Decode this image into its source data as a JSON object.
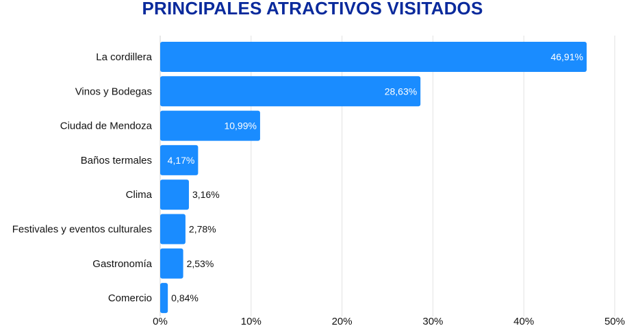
{
  "colors": {
    "bar": "#1a8cff",
    "title": "#0a2a9c",
    "grid": "#e2e2e2",
    "text": "#111111",
    "label_inside": "#ffffff"
  },
  "chart_data": {
    "type": "bar",
    "orientation": "horizontal",
    "title": "PRINCIPALES ATRACTIVOS VISITADOS",
    "xlabel": "",
    "ylabel": "",
    "xlim": [
      0,
      50
    ],
    "grid": true,
    "categories": [
      "La cordillera",
      "Vinos y Bodegas",
      "Ciudad de Mendoza",
      "Baños termales",
      "Clima",
      "Festivales y eventos culturales",
      "Gastronomía",
      "Comercio"
    ],
    "values": [
      46.91,
      28.63,
      10.99,
      4.17,
      3.16,
      2.78,
      2.53,
      0.84
    ],
    "value_labels": [
      "46,91%",
      "28,63%",
      "10,99%",
      "4,17%",
      "3,16%",
      "2,78%",
      "2,53%",
      "0,84%"
    ],
    "ticks": [
      0,
      10,
      20,
      30,
      40,
      50
    ],
    "tick_labels": [
      "0%",
      "10%",
      "20%",
      "30%",
      "40%",
      "50%"
    ]
  }
}
